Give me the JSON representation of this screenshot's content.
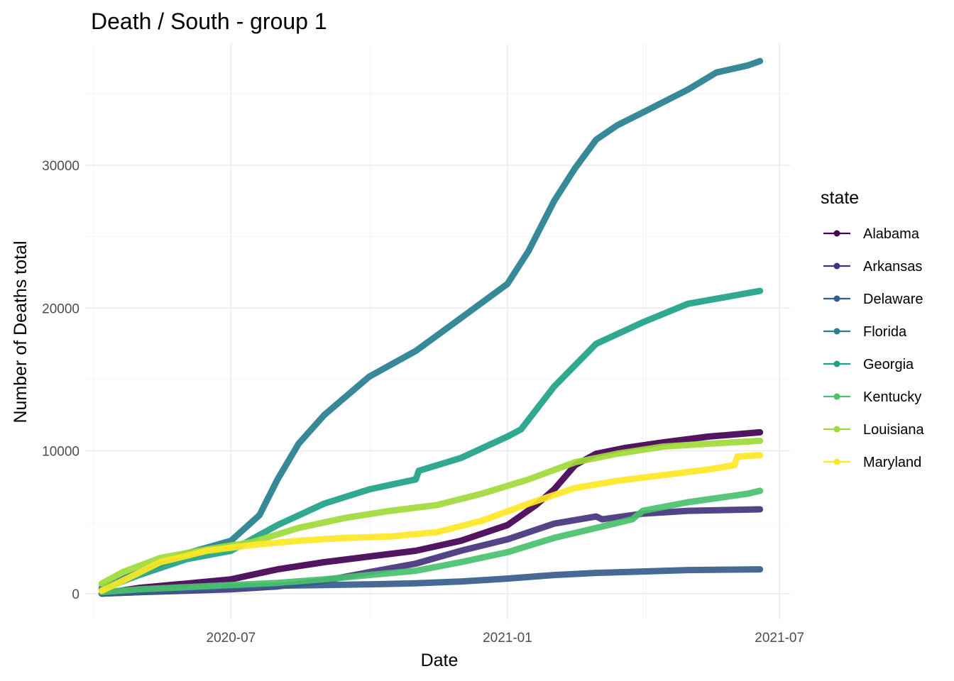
{
  "chart_data": {
    "type": "line",
    "title": "Death / South - group 1",
    "xlabel": "Date",
    "ylabel": "Number of Deaths total",
    "x_type": "date",
    "xlim": [
      "2020-03-26",
      "2021-07-08"
    ],
    "x_ticks": [
      {
        "date": "2020-07-01",
        "label": "2020-07"
      },
      {
        "date": "2021-01-01",
        "label": "2021-01"
      },
      {
        "date": "2021-07-01",
        "label": "2021-07"
      }
    ],
    "ylim": [
      -1800,
      38500
    ],
    "y_ticks": [
      0,
      10000,
      20000,
      30000
    ],
    "grid": true,
    "legend": {
      "title": "state",
      "position": "right"
    },
    "series": [
      {
        "name": "Alabama",
        "color": "#440154",
        "points": [
          [
            "2020-04-06",
            0
          ],
          [
            "2020-05-01",
            400
          ],
          [
            "2020-06-01",
            700
          ],
          [
            "2020-07-01",
            1000
          ],
          [
            "2020-08-01",
            1700
          ],
          [
            "2020-09-01",
            2200
          ],
          [
            "2020-10-01",
            2600
          ],
          [
            "2020-11-01",
            3000
          ],
          [
            "2020-12-01",
            3700
          ],
          [
            "2021-01-01",
            4800
          ],
          [
            "2021-01-20",
            6200
          ],
          [
            "2021-02-01",
            7300
          ],
          [
            "2021-02-15",
            9000
          ],
          [
            "2021-03-01",
            9800
          ],
          [
            "2021-03-20",
            10200
          ],
          [
            "2021-04-15",
            10600
          ],
          [
            "2021-05-15",
            11000
          ],
          [
            "2021-06-18",
            11300
          ]
        ]
      },
      {
        "name": "Arkansas",
        "color": "#46337e",
        "points": [
          [
            "2020-04-06",
            0
          ],
          [
            "2020-05-01",
            100
          ],
          [
            "2020-06-01",
            200
          ],
          [
            "2020-07-01",
            300
          ],
          [
            "2020-08-01",
            500
          ],
          [
            "2020-09-01",
            900
          ],
          [
            "2020-10-01",
            1500
          ],
          [
            "2020-11-01",
            2100
          ],
          [
            "2020-12-01",
            3000
          ],
          [
            "2021-01-01",
            3800
          ],
          [
            "2021-02-01",
            4900
          ],
          [
            "2021-03-01",
            5400
          ],
          [
            "2021-03-05",
            5200
          ],
          [
            "2021-04-01",
            5600
          ],
          [
            "2021-05-01",
            5800
          ],
          [
            "2021-06-18",
            5900
          ]
        ]
      },
      {
        "name": "Delaware",
        "color": "#365c8d",
        "points": [
          [
            "2020-04-06",
            0
          ],
          [
            "2020-05-01",
            100
          ],
          [
            "2020-06-01",
            300
          ],
          [
            "2020-07-01",
            500
          ],
          [
            "2020-08-01",
            550
          ],
          [
            "2020-09-01",
            600
          ],
          [
            "2020-10-01",
            650
          ],
          [
            "2020-11-01",
            720
          ],
          [
            "2020-12-01",
            850
          ],
          [
            "2021-01-01",
            1050
          ],
          [
            "2021-02-01",
            1300
          ],
          [
            "2021-03-01",
            1450
          ],
          [
            "2021-04-01",
            1550
          ],
          [
            "2021-05-01",
            1650
          ],
          [
            "2021-06-18",
            1700
          ]
        ]
      },
      {
        "name": "Florida",
        "color": "#277f8e",
        "points": [
          [
            "2020-04-06",
            400
          ],
          [
            "2020-05-01",
            1500
          ],
          [
            "2020-06-01",
            2800
          ],
          [
            "2020-07-01",
            3700
          ],
          [
            "2020-07-20",
            5500
          ],
          [
            "2020-08-01",
            8000
          ],
          [
            "2020-08-15",
            10500
          ],
          [
            "2020-09-01",
            12500
          ],
          [
            "2020-10-01",
            15200
          ],
          [
            "2020-11-01",
            17000
          ],
          [
            "2020-12-01",
            19300
          ],
          [
            "2021-01-01",
            21700
          ],
          [
            "2021-01-15",
            24000
          ],
          [
            "2021-02-01",
            27500
          ],
          [
            "2021-02-15",
            29800
          ],
          [
            "2021-03-01",
            31800
          ],
          [
            "2021-03-15",
            32800
          ],
          [
            "2021-04-01",
            33700
          ],
          [
            "2021-05-01",
            35300
          ],
          [
            "2021-05-20",
            36500
          ],
          [
            "2021-06-10",
            37000
          ],
          [
            "2021-06-18",
            37300
          ]
        ]
      },
      {
        "name": "Georgia",
        "color": "#1fa187",
        "points": [
          [
            "2020-04-06",
            300
          ],
          [
            "2020-05-01",
            1300
          ],
          [
            "2020-06-01",
            2400
          ],
          [
            "2020-07-01",
            3000
          ],
          [
            "2020-08-01",
            4800
          ],
          [
            "2020-09-01",
            6300
          ],
          [
            "2020-10-01",
            7300
          ],
          [
            "2020-11-01",
            8000
          ],
          [
            "2020-11-03",
            8600
          ],
          [
            "2020-12-01",
            9500
          ],
          [
            "2021-01-01",
            11000
          ],
          [
            "2021-01-10",
            11500
          ],
          [
            "2021-02-01",
            14500
          ],
          [
            "2021-03-01",
            17500
          ],
          [
            "2021-04-01",
            19000
          ],
          [
            "2021-05-01",
            20300
          ],
          [
            "2021-06-18",
            21200
          ]
        ]
      },
      {
        "name": "Kentucky",
        "color": "#4ac16d",
        "points": [
          [
            "2020-04-06",
            100
          ],
          [
            "2020-05-01",
            300
          ],
          [
            "2020-06-01",
            450
          ],
          [
            "2020-07-01",
            600
          ],
          [
            "2020-08-01",
            750
          ],
          [
            "2020-09-01",
            1000
          ],
          [
            "2020-10-01",
            1300
          ],
          [
            "2020-11-01",
            1600
          ],
          [
            "2020-12-01",
            2200
          ],
          [
            "2021-01-01",
            2900
          ],
          [
            "2021-02-01",
            3900
          ],
          [
            "2021-03-01",
            4600
          ],
          [
            "2021-03-25",
            5200
          ],
          [
            "2021-04-01",
            5800
          ],
          [
            "2021-05-01",
            6400
          ],
          [
            "2021-06-10",
            7000
          ],
          [
            "2021-06-18",
            7200
          ]
        ]
      },
      {
        "name": "Louisiana",
        "color": "#a0da39",
        "points": [
          [
            "2020-04-06",
            700
          ],
          [
            "2020-04-20",
            1500
          ],
          [
            "2020-05-15",
            2500
          ],
          [
            "2020-06-15",
            3100
          ],
          [
            "2020-07-15",
            3600
          ],
          [
            "2020-08-15",
            4600
          ],
          [
            "2020-09-15",
            5300
          ],
          [
            "2020-10-15",
            5800
          ],
          [
            "2020-11-15",
            6200
          ],
          [
            "2020-12-15",
            7000
          ],
          [
            "2021-01-15",
            8000
          ],
          [
            "2021-02-15",
            9200
          ],
          [
            "2021-03-15",
            9800
          ],
          [
            "2021-04-15",
            10300
          ],
          [
            "2021-05-15",
            10500
          ],
          [
            "2021-06-18",
            10700
          ]
        ]
      },
      {
        "name": "Maryland",
        "color": "#fde725",
        "points": [
          [
            "2020-04-06",
            200
          ],
          [
            "2020-04-20",
            900
          ],
          [
            "2020-05-15",
            2200
          ],
          [
            "2020-06-15",
            3000
          ],
          [
            "2020-07-15",
            3400
          ],
          [
            "2020-08-15",
            3700
          ],
          [
            "2020-09-15",
            3900
          ],
          [
            "2020-10-15",
            4000
          ],
          [
            "2020-11-15",
            4300
          ],
          [
            "2020-12-15",
            5100
          ],
          [
            "2021-01-15",
            6300
          ],
          [
            "2021-02-15",
            7400
          ],
          [
            "2021-03-15",
            7900
          ],
          [
            "2021-04-15",
            8300
          ],
          [
            "2021-05-15",
            8700
          ],
          [
            "2021-06-01",
            9000
          ],
          [
            "2021-06-03",
            9600
          ],
          [
            "2021-06-18",
            9700
          ]
        ]
      }
    ]
  }
}
